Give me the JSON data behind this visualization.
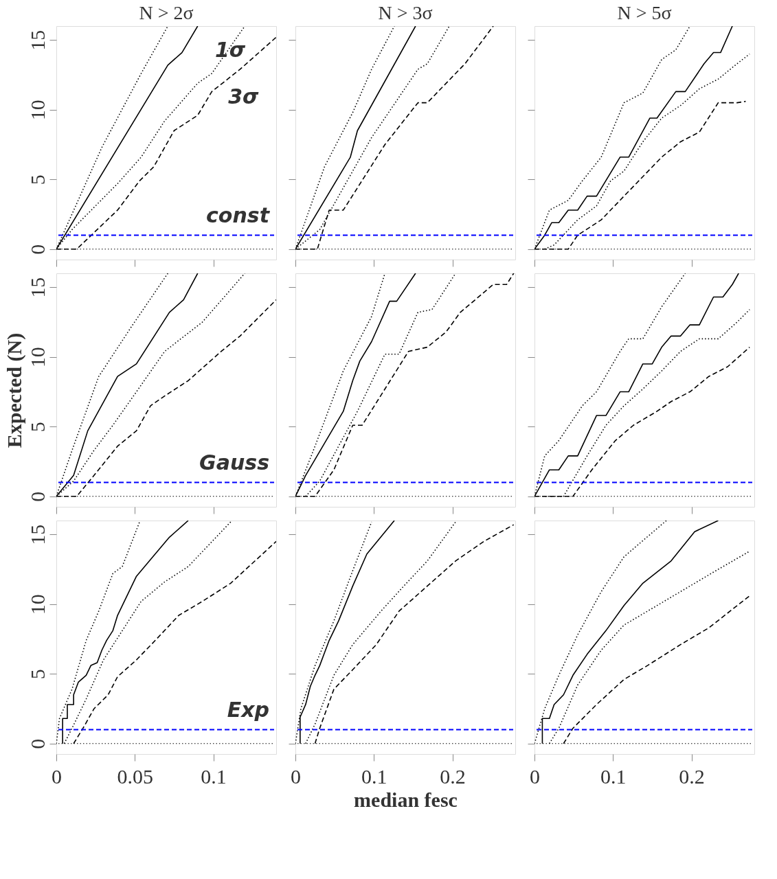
{
  "chart_data": [
    {
      "type": "line",
      "title": "N > 2σ",
      "xlim": [
        0,
        0.14
      ],
      "ylim": [
        -0.75,
        16
      ],
      "xticks": [
        0,
        0.05,
        0.1
      ],
      "yticks": [
        0,
        5,
        10,
        15
      ],
      "grid": false,
      "tick_labels": "y",
      "annotations": [
        "1σ",
        "3σ",
        "const"
      ],
      "ref_lines": [
        {
          "axis": "y",
          "value": 1,
          "color": "#0000ff",
          "line_style": "dashed"
        },
        {
          "axis": "y",
          "value": 0,
          "color": "#000000",
          "line_style": "dotted"
        }
      ],
      "series": [
        {
          "color": "#000000",
          "line_style": "solid",
          "x": [
            0,
            0.071,
            0.08,
            0.09
          ],
          "values": [
            0,
            13.2,
            14.1,
            16
          ]
        },
        {
          "color": "#000000",
          "line_style": "dotted",
          "x": [
            0,
            0.029,
            0.054,
            0.071
          ],
          "values": [
            0,
            7.3,
            12.6,
            16
          ]
        },
        {
          "color": "#000000",
          "line_style": "dotted",
          "x": [
            0,
            0.01,
            0.039,
            0.054,
            0.069,
            0.09,
            0.099,
            0.12
          ],
          "values": [
            0,
            1.4,
            4.7,
            6.6,
            9.2,
            11.9,
            12.6,
            16
          ]
        },
        {
          "color": "#000000",
          "line_style": "dashed",
          "x": [
            0,
            0.013,
            0.039,
            0.053,
            0.062,
            0.075,
            0.09,
            0.099,
            0.117,
            0.14
          ],
          "values": [
            0,
            0,
            2.8,
            4.9,
            5.9,
            8.5,
            9.6,
            11.3,
            12.9,
            15.2
          ]
        }
      ]
    },
    {
      "type": "line",
      "title": "N > 3σ",
      "xlim": [
        0,
        0.28
      ],
      "ylim": [
        -0.75,
        16
      ],
      "xticks": [
        0,
        0.1,
        0.2
      ],
      "yticks": [
        0,
        5,
        10,
        15
      ],
      "grid": false,
      "tick_labels": false,
      "ref_lines": [
        {
          "axis": "y",
          "value": 1,
          "color": "#0000ff",
          "line_style": "dashed"
        },
        {
          "axis": "y",
          "value": 0,
          "color": "#000000",
          "line_style": "dotted"
        }
      ],
      "series": [
        {
          "color": "#000000",
          "line_style": "solid",
          "x": [
            0,
            0.07,
            0.079,
            0.153
          ],
          "values": [
            0,
            6.6,
            8.5,
            16
          ]
        },
        {
          "color": "#000000",
          "line_style": "dotted",
          "x": [
            0,
            0.037,
            0.073,
            0.097,
            0.126
          ],
          "values": [
            0,
            5.9,
            9.8,
            12.9,
            16
          ]
        },
        {
          "color": "#000000",
          "line_style": "dotted",
          "x": [
            0,
            0.031,
            0.097,
            0.156,
            0.168,
            0.196
          ],
          "values": [
            0,
            1.4,
            8,
            12.9,
            13.3,
            16
          ]
        },
        {
          "color": "#000000",
          "line_style": "dashed",
          "x": [
            0,
            0.028,
            0.043,
            0.061,
            0.114,
            0.156,
            0.168,
            0.216,
            0.252
          ],
          "values": [
            0,
            0,
            2.8,
            2.8,
            7.5,
            10.5,
            10.5,
            13.3,
            16
          ]
        }
      ]
    },
    {
      "type": "line",
      "title": "N > 5σ",
      "xlim": [
        0,
        0.28
      ],
      "ylim": [
        -0.75,
        16
      ],
      "xticks": [
        0,
        0.1,
        0.2
      ],
      "yticks": [
        0,
        5,
        10,
        15
      ],
      "grid": false,
      "tick_labels": false,
      "ref_lines": [
        {
          "axis": "y",
          "value": 1,
          "color": "#0000ff",
          "line_style": "dashed"
        },
        {
          "axis": "y",
          "value": 0,
          "color": "#000000",
          "line_style": "dotted"
        }
      ],
      "series": [
        {
          "color": "#000000",
          "line_style": "solid",
          "x": [
            0,
            0.013,
            0.022,
            0.031,
            0.043,
            0.055,
            0.067,
            0.079,
            0.109,
            0.12,
            0.147,
            0.156,
            0.18,
            0.192,
            0.216,
            0.228,
            0.237,
            0.252
          ],
          "values": [
            0,
            1,
            1.9,
            1.9,
            2.8,
            2.8,
            3.8,
            3.8,
            6.6,
            6.6,
            9.4,
            9.4,
            11.3,
            11.3,
            13.3,
            14.1,
            14.1,
            16
          ]
        },
        {
          "color": "#000000",
          "line_style": "dotted",
          "x": [
            0,
            0.019,
            0.043,
            0.061,
            0.085,
            0.114,
            0.138,
            0.162,
            0.18,
            0.198
          ],
          "values": [
            0,
            2.8,
            3.5,
            4.9,
            6.6,
            10.5,
            11.2,
            13.6,
            14.3,
            16
          ]
        },
        {
          "color": "#000000",
          "line_style": "dotted",
          "x": [
            0.013,
            0.025,
            0.055,
            0.079,
            0.097,
            0.114,
            0.138,
            0.162,
            0.186,
            0.21,
            0.234,
            0.258,
            0.274
          ],
          "values": [
            0,
            0.3,
            2.1,
            3.1,
            4.9,
            5.6,
            7.7,
            9.4,
            10.3,
            11.5,
            12.2,
            13.3,
            14
          ]
        },
        {
          "color": "#000000",
          "line_style": "dashed",
          "x": [
            0,
            0.043,
            0.055,
            0.085,
            0.114,
            0.138,
            0.162,
            0.186,
            0.21,
            0.234,
            0.258,
            0.269
          ],
          "values": [
            0,
            0,
            1,
            2.1,
            3.8,
            5.2,
            6.6,
            7.7,
            8.4,
            10.5,
            10.5,
            10.6
          ]
        }
      ]
    },
    {
      "type": "line",
      "xlim": [
        0,
        0.14
      ],
      "ylim": [
        -0.75,
        16
      ],
      "xticks": [
        0,
        0.05,
        0.1
      ],
      "yticks": [
        0,
        5,
        10,
        15
      ],
      "grid": false,
      "tick_labels": "y",
      "ylabel": "Expected (N)",
      "annotations": [
        "Gauss"
      ],
      "ref_lines": [
        {
          "axis": "y",
          "value": 1,
          "color": "#0000ff",
          "line_style": "dashed"
        },
        {
          "axis": "y",
          "value": 0,
          "color": "#000000",
          "line_style": "dotted"
        }
      ],
      "series": [
        {
          "color": "#000000",
          "line_style": "solid",
          "x": [
            0,
            0.011,
            0.02,
            0.039,
            0.051,
            0.072,
            0.081,
            0.09
          ],
          "values": [
            0,
            1.5,
            4.7,
            8.6,
            9.5,
            13.2,
            14.1,
            16
          ]
        },
        {
          "color": "#000000",
          "line_style": "dotted",
          "x": [
            0,
            0.01,
            0.027,
            0.048,
            0.071
          ],
          "values": [
            0,
            3.3,
            8.6,
            12.2,
            16
          ]
        },
        {
          "color": "#000000",
          "line_style": "dotted",
          "x": [
            0,
            0.011,
            0.024,
            0.036,
            0.051,
            0.069,
            0.093,
            0.12
          ],
          "values": [
            0,
            1.1,
            3.3,
            5.1,
            7.5,
            10.4,
            12.5,
            16
          ]
        },
        {
          "color": "#000000",
          "line_style": "dashed",
          "x": [
            0,
            0.013,
            0.024,
            0.039,
            0.051,
            0.06,
            0.069,
            0.084,
            0.105,
            0.117,
            0.14
          ],
          "values": [
            0,
            0,
            1.5,
            3.6,
            4.7,
            6.5,
            7.2,
            8.3,
            10.4,
            11.5,
            14.1
          ]
        }
      ]
    },
    {
      "type": "line",
      "xlim": [
        0,
        0.28
      ],
      "ylim": [
        -0.75,
        16
      ],
      "xticks": [
        0,
        0.1,
        0.2
      ],
      "yticks": [
        0,
        5,
        10,
        15
      ],
      "grid": false,
      "tick_labels": false,
      "ref_lines": [
        {
          "axis": "y",
          "value": 1,
          "color": "#0000ff",
          "line_style": "dashed"
        },
        {
          "axis": "y",
          "value": 0,
          "color": "#000000",
          "line_style": "dotted"
        }
      ],
      "series": [
        {
          "color": "#000000",
          "line_style": "solid",
          "x": [
            0,
            0.013,
            0.061,
            0.073,
            0.082,
            0.097,
            0.12,
            0.129,
            0.153
          ],
          "values": [
            0,
            1.5,
            6.1,
            8.3,
            9.7,
            11.1,
            14,
            14,
            16
          ]
        },
        {
          "color": "#000000",
          "line_style": "dotted",
          "x": [
            0,
            0.025,
            0.061,
            0.097,
            0.114
          ],
          "values": [
            0,
            3.6,
            9,
            12.9,
            16
          ]
        },
        {
          "color": "#000000",
          "line_style": "dotted",
          "x": [
            0.013,
            0.031,
            0.079,
            0.114,
            0.132,
            0.156,
            0.174,
            0.204
          ],
          "values": [
            0,
            1.1,
            6.1,
            10.2,
            10.2,
            13.2,
            13.4,
            16
          ]
        },
        {
          "color": "#000000",
          "line_style": "dashed",
          "x": [
            0,
            0.025,
            0.049,
            0.073,
            0.085,
            0.114,
            0.144,
            0.168,
            0.192,
            0.21,
            0.252,
            0.269,
            0.278
          ],
          "values": [
            0,
            0,
            1.9,
            5.1,
            5.1,
            7.7,
            10.4,
            10.7,
            11.8,
            13.2,
            15.2,
            15.2,
            16
          ]
        }
      ]
    },
    {
      "type": "line",
      "xlim": [
        0,
        0.28
      ],
      "ylim": [
        -0.75,
        16
      ],
      "xticks": [
        0,
        0.1,
        0.2
      ],
      "yticks": [
        0,
        5,
        10,
        15
      ],
      "grid": false,
      "tick_labels": false,
      "ref_lines": [
        {
          "axis": "y",
          "value": 1,
          "color": "#0000ff",
          "line_style": "dashed"
        },
        {
          "axis": "y",
          "value": 0,
          "color": "#000000",
          "line_style": "dotted"
        }
      ],
      "series": [
        {
          "color": "#000000",
          "line_style": "solid",
          "x": [
            0,
            0.019,
            0.031,
            0.043,
            0.055,
            0.079,
            0.091,
            0.109,
            0.12,
            0.138,
            0.15,
            0.162,
            0.174,
            0.186,
            0.198,
            0.21,
            0.228,
            0.24,
            0.252,
            0.26
          ],
          "values": [
            0,
            1.9,
            1.9,
            2.9,
            2.9,
            5.8,
            5.8,
            7.5,
            7.5,
            9.5,
            9.5,
            10.7,
            11.5,
            11.5,
            12.3,
            12.3,
            14.3,
            14.3,
            15.2,
            16
          ]
        },
        {
          "color": "#000000",
          "line_style": "dotted",
          "x": [
            0,
            0.013,
            0.031,
            0.061,
            0.079,
            0.109,
            0.12,
            0.138,
            0.162,
            0.192
          ],
          "values": [
            0,
            2.9,
            4,
            6.5,
            7.5,
            10.4,
            11.3,
            11.3,
            13.6,
            16
          ]
        },
        {
          "color": "#000000",
          "line_style": "dotted",
          "x": [
            0.013,
            0.037,
            0.067,
            0.091,
            0.114,
            0.138,
            0.162,
            0.186,
            0.21,
            0.234,
            0.258,
            0.274
          ],
          "values": [
            0,
            0,
            2.9,
            5.1,
            6.5,
            7.7,
            9,
            10.4,
            11.3,
            11.3,
            12.5,
            13.4
          ]
        },
        {
          "color": "#000000",
          "line_style": "dashed",
          "x": [
            0,
            0.049,
            0.073,
            0.103,
            0.126,
            0.156,
            0.174,
            0.198,
            0.222,
            0.246,
            0.274
          ],
          "values": [
            0,
            0,
            1.9,
            4,
            5.1,
            6.1,
            6.8,
            7.5,
            8.6,
            9.3,
            10.7
          ]
        }
      ]
    },
    {
      "type": "line",
      "xlim": [
        0,
        0.14
      ],
      "ylim": [
        -0.75,
        16
      ],
      "xticks": [
        0,
        0.05,
        0.1
      ],
      "yticks": [
        0,
        5,
        10,
        15
      ],
      "grid": false,
      "annotations": [
        "Exp"
      ],
      "ref_lines": [
        {
          "axis": "y",
          "value": 1,
          "color": "#0000ff",
          "line_style": "dashed"
        },
        {
          "axis": "y",
          "value": 0,
          "color": "#000000",
          "line_style": "dotted"
        }
      ],
      "series": [
        {
          "color": "#000000",
          "line_style": "solid",
          "x": [
            0.004,
            0.004,
            0.007,
            0.007,
            0.011,
            0.011,
            0.014,
            0.019,
            0.022,
            0.026,
            0.029,
            0.032,
            0.036,
            0.039,
            0.051,
            0.06,
            0.072,
            0.084
          ],
          "values": [
            0,
            1.8,
            1.8,
            2.8,
            2.8,
            3.5,
            4.4,
            4.9,
            5.6,
            5.8,
            6.7,
            7.4,
            8.1,
            9.2,
            12,
            13.2,
            14.8,
            16
          ]
        },
        {
          "color": "#000000",
          "line_style": "dotted",
          "x": [
            0,
            0.002,
            0.01,
            0.019,
            0.027,
            0.036,
            0.042,
            0.053
          ],
          "values": [
            0,
            1.8,
            3.9,
            7.4,
            9.5,
            12.2,
            12.7,
            15.9
          ]
        },
        {
          "color": "#000000",
          "line_style": "dotted",
          "x": [
            0.005,
            0.01,
            0.019,
            0.03,
            0.042,
            0.054,
            0.069,
            0.084,
            0.111
          ],
          "values": [
            0,
            1.1,
            3.2,
            6,
            8.1,
            10.2,
            11.6,
            12.7,
            15.9
          ]
        },
        {
          "color": "#000000",
          "line_style": "dashed",
          "x": [
            0.011,
            0.017,
            0.024,
            0.033,
            0.039,
            0.051,
            0.063,
            0.078,
            0.093,
            0.111,
            0.14
          ],
          "values": [
            0,
            1.1,
            2.5,
            3.5,
            4.8,
            6,
            7.4,
            9.2,
            10.2,
            11.5,
            14.5
          ]
        }
      ]
    },
    {
      "type": "line",
      "xlim": [
        0,
        0.28
      ],
      "ylim": [
        -0.75,
        16
      ],
      "xticks": [
        0,
        0.1,
        0.2
      ],
      "yticks": [
        0,
        5,
        10,
        15
      ],
      "grid": false,
      "tick_labels": "x",
      "xlabel": "median fesc",
      "ref_lines": [
        {
          "axis": "y",
          "value": 1,
          "color": "#0000ff",
          "line_style": "dashed"
        },
        {
          "axis": "y",
          "value": 0,
          "color": "#000000",
          "line_style": "dotted"
        }
      ],
      "series": [
        {
          "color": "#000000",
          "line_style": "solid",
          "x": [
            0.006,
            0.006,
            0.013,
            0.019,
            0.025,
            0.031,
            0.037,
            0.043,
            0.055,
            0.073,
            0.091,
            0.126
          ],
          "values": [
            0,
            1.9,
            2.8,
            4.1,
            4.9,
            5.6,
            6.5,
            7.4,
            8.8,
            11.3,
            13.6,
            16
          ]
        },
        {
          "color": "#000000",
          "line_style": "dotted",
          "x": [
            0,
            0.007,
            0.025,
            0.049,
            0.073,
            0.097
          ],
          "values": [
            0,
            2.5,
            5.6,
            8.8,
            12.4,
            15.9
          ]
        },
        {
          "color": "#000000",
          "line_style": "dotted",
          "x": [
            0.013,
            0.025,
            0.049,
            0.073,
            0.109,
            0.138,
            0.168,
            0.204
          ],
          "values": [
            0,
            1.4,
            4.9,
            7.1,
            9.5,
            11.3,
            13.1,
            15.9
          ]
        },
        {
          "color": "#000000",
          "line_style": "dashed",
          "x": [
            0.025,
            0.031,
            0.049,
            0.073,
            0.103,
            0.132,
            0.168,
            0.204,
            0.24,
            0.278
          ],
          "values": [
            0,
            1.1,
            3.9,
            5.3,
            7.1,
            9.5,
            11.3,
            13.1,
            14.5,
            15.7
          ]
        }
      ]
    },
    {
      "type": "line",
      "xlim": [
        0,
        0.28
      ],
      "ylim": [
        -0.75,
        16
      ],
      "xticks": [
        0,
        0.1,
        0.2
      ],
      "yticks": [
        0,
        5,
        10,
        15
      ],
      "grid": false,
      "tick_labels": "x",
      "ref_lines": [
        {
          "axis": "y",
          "value": 1,
          "color": "#0000ff",
          "line_style": "dashed"
        },
        {
          "axis": "y",
          "value": 0,
          "color": "#000000",
          "line_style": "dotted"
        }
      ],
      "series": [
        {
          "color": "#000000",
          "line_style": "solid",
          "x": [
            0.01,
            0.01,
            0.019,
            0.025,
            0.037,
            0.049,
            0.067,
            0.091,
            0.114,
            0.138,
            0.174,
            0.204,
            0.234
          ],
          "values": [
            0,
            1.8,
            1.8,
            2.8,
            3.5,
            4.9,
            6.4,
            8.1,
            9.9,
            11.5,
            13.1,
            15.2,
            16
          ]
        },
        {
          "color": "#000000",
          "line_style": "dotted",
          "x": [
            0,
            0.013,
            0.031,
            0.055,
            0.085,
            0.114,
            0.168
          ],
          "values": [
            0,
            2.5,
            4.9,
            7.8,
            10.9,
            13.4,
            16
          ]
        },
        {
          "color": "#000000",
          "line_style": "dotted",
          "x": [
            0.019,
            0.031,
            0.055,
            0.085,
            0.114,
            0.144,
            0.186,
            0.234,
            0.274
          ],
          "values": [
            0,
            1.1,
            4.2,
            6.7,
            8.5,
            9.5,
            10.9,
            12.5,
            13.8
          ]
        },
        {
          "color": "#000000",
          "line_style": "dashed",
          "x": [
            0.037,
            0.049,
            0.079,
            0.114,
            0.144,
            0.186,
            0.222,
            0.274
          ],
          "values": [
            0,
            1.1,
            2.8,
            4.6,
            5.6,
            7.1,
            8.3,
            10.6
          ]
        }
      ]
    }
  ]
}
